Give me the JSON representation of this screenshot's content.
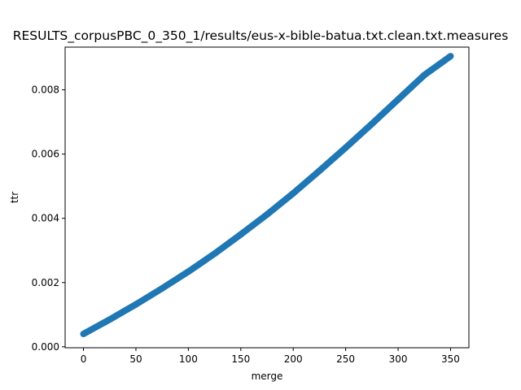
{
  "chart_data": {
    "type": "scatter",
    "title": "RESULTS_corpusPBC_0_350_1/results/eus-x-bible-batua.txt.clean.txt.measures",
    "xlabel": "merge",
    "ylabel": "ttr",
    "xlim": [
      -17.5,
      367.5
    ],
    "ylim": [
      -3e-05,
      0.00933
    ],
    "xticks": [
      0,
      50,
      100,
      150,
      200,
      250,
      300,
      350
    ],
    "yticks": [
      0.0,
      0.002,
      0.004,
      0.006,
      0.008
    ],
    "xtick_labels": [
      "0",
      "50",
      "100",
      "150",
      "200",
      "250",
      "300",
      "350"
    ],
    "ytick_labels": [
      "0.000",
      "0.002",
      "0.004",
      "0.006",
      "0.008"
    ],
    "grid": false,
    "legend": false,
    "marker": "thick",
    "series": [
      {
        "color": "#1f77b4",
        "x": [
          0,
          25,
          50,
          75,
          100,
          125,
          150,
          175,
          200,
          225,
          250,
          275,
          300,
          325,
          350
        ],
        "y": [
          0.0004,
          0.00085,
          0.00132,
          0.00182,
          0.00234,
          0.0029,
          0.0035,
          0.00412,
          0.00478,
          0.00548,
          0.0062,
          0.00694,
          0.0077,
          0.00846,
          0.00905
        ]
      }
    ]
  }
}
